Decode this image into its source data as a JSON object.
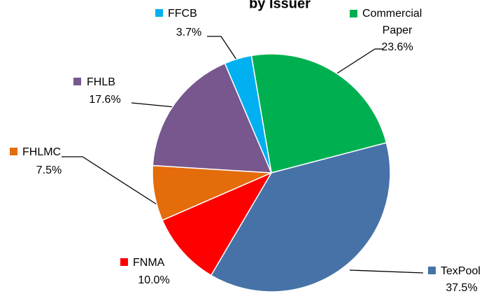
{
  "chart_data": {
    "type": "pie",
    "title": "by Issuer",
    "categories": [
      "Commercial Paper",
      "TexPool",
      "FNMA",
      "FHLMC",
      "FHLB",
      "FFCB"
    ],
    "label_lines": [
      [
        "Commercial",
        "Paper"
      ],
      [
        "TexPool"
      ],
      [
        "FNMA"
      ],
      [
        "FHLMC"
      ],
      [
        "FHLB"
      ],
      [
        "FFCB"
      ]
    ],
    "values": [
      23.6,
      37.5,
      10.0,
      7.5,
      17.6,
      3.7
    ],
    "value_labels": [
      "23.6%",
      "37.5%",
      "10.0%",
      "7.5%",
      "17.6%",
      "3.7%"
    ],
    "colors": [
      "#00b050",
      "#4672a8",
      "#ff0000",
      "#e46c0a",
      "#77578d",
      "#00b0f0"
    ]
  }
}
